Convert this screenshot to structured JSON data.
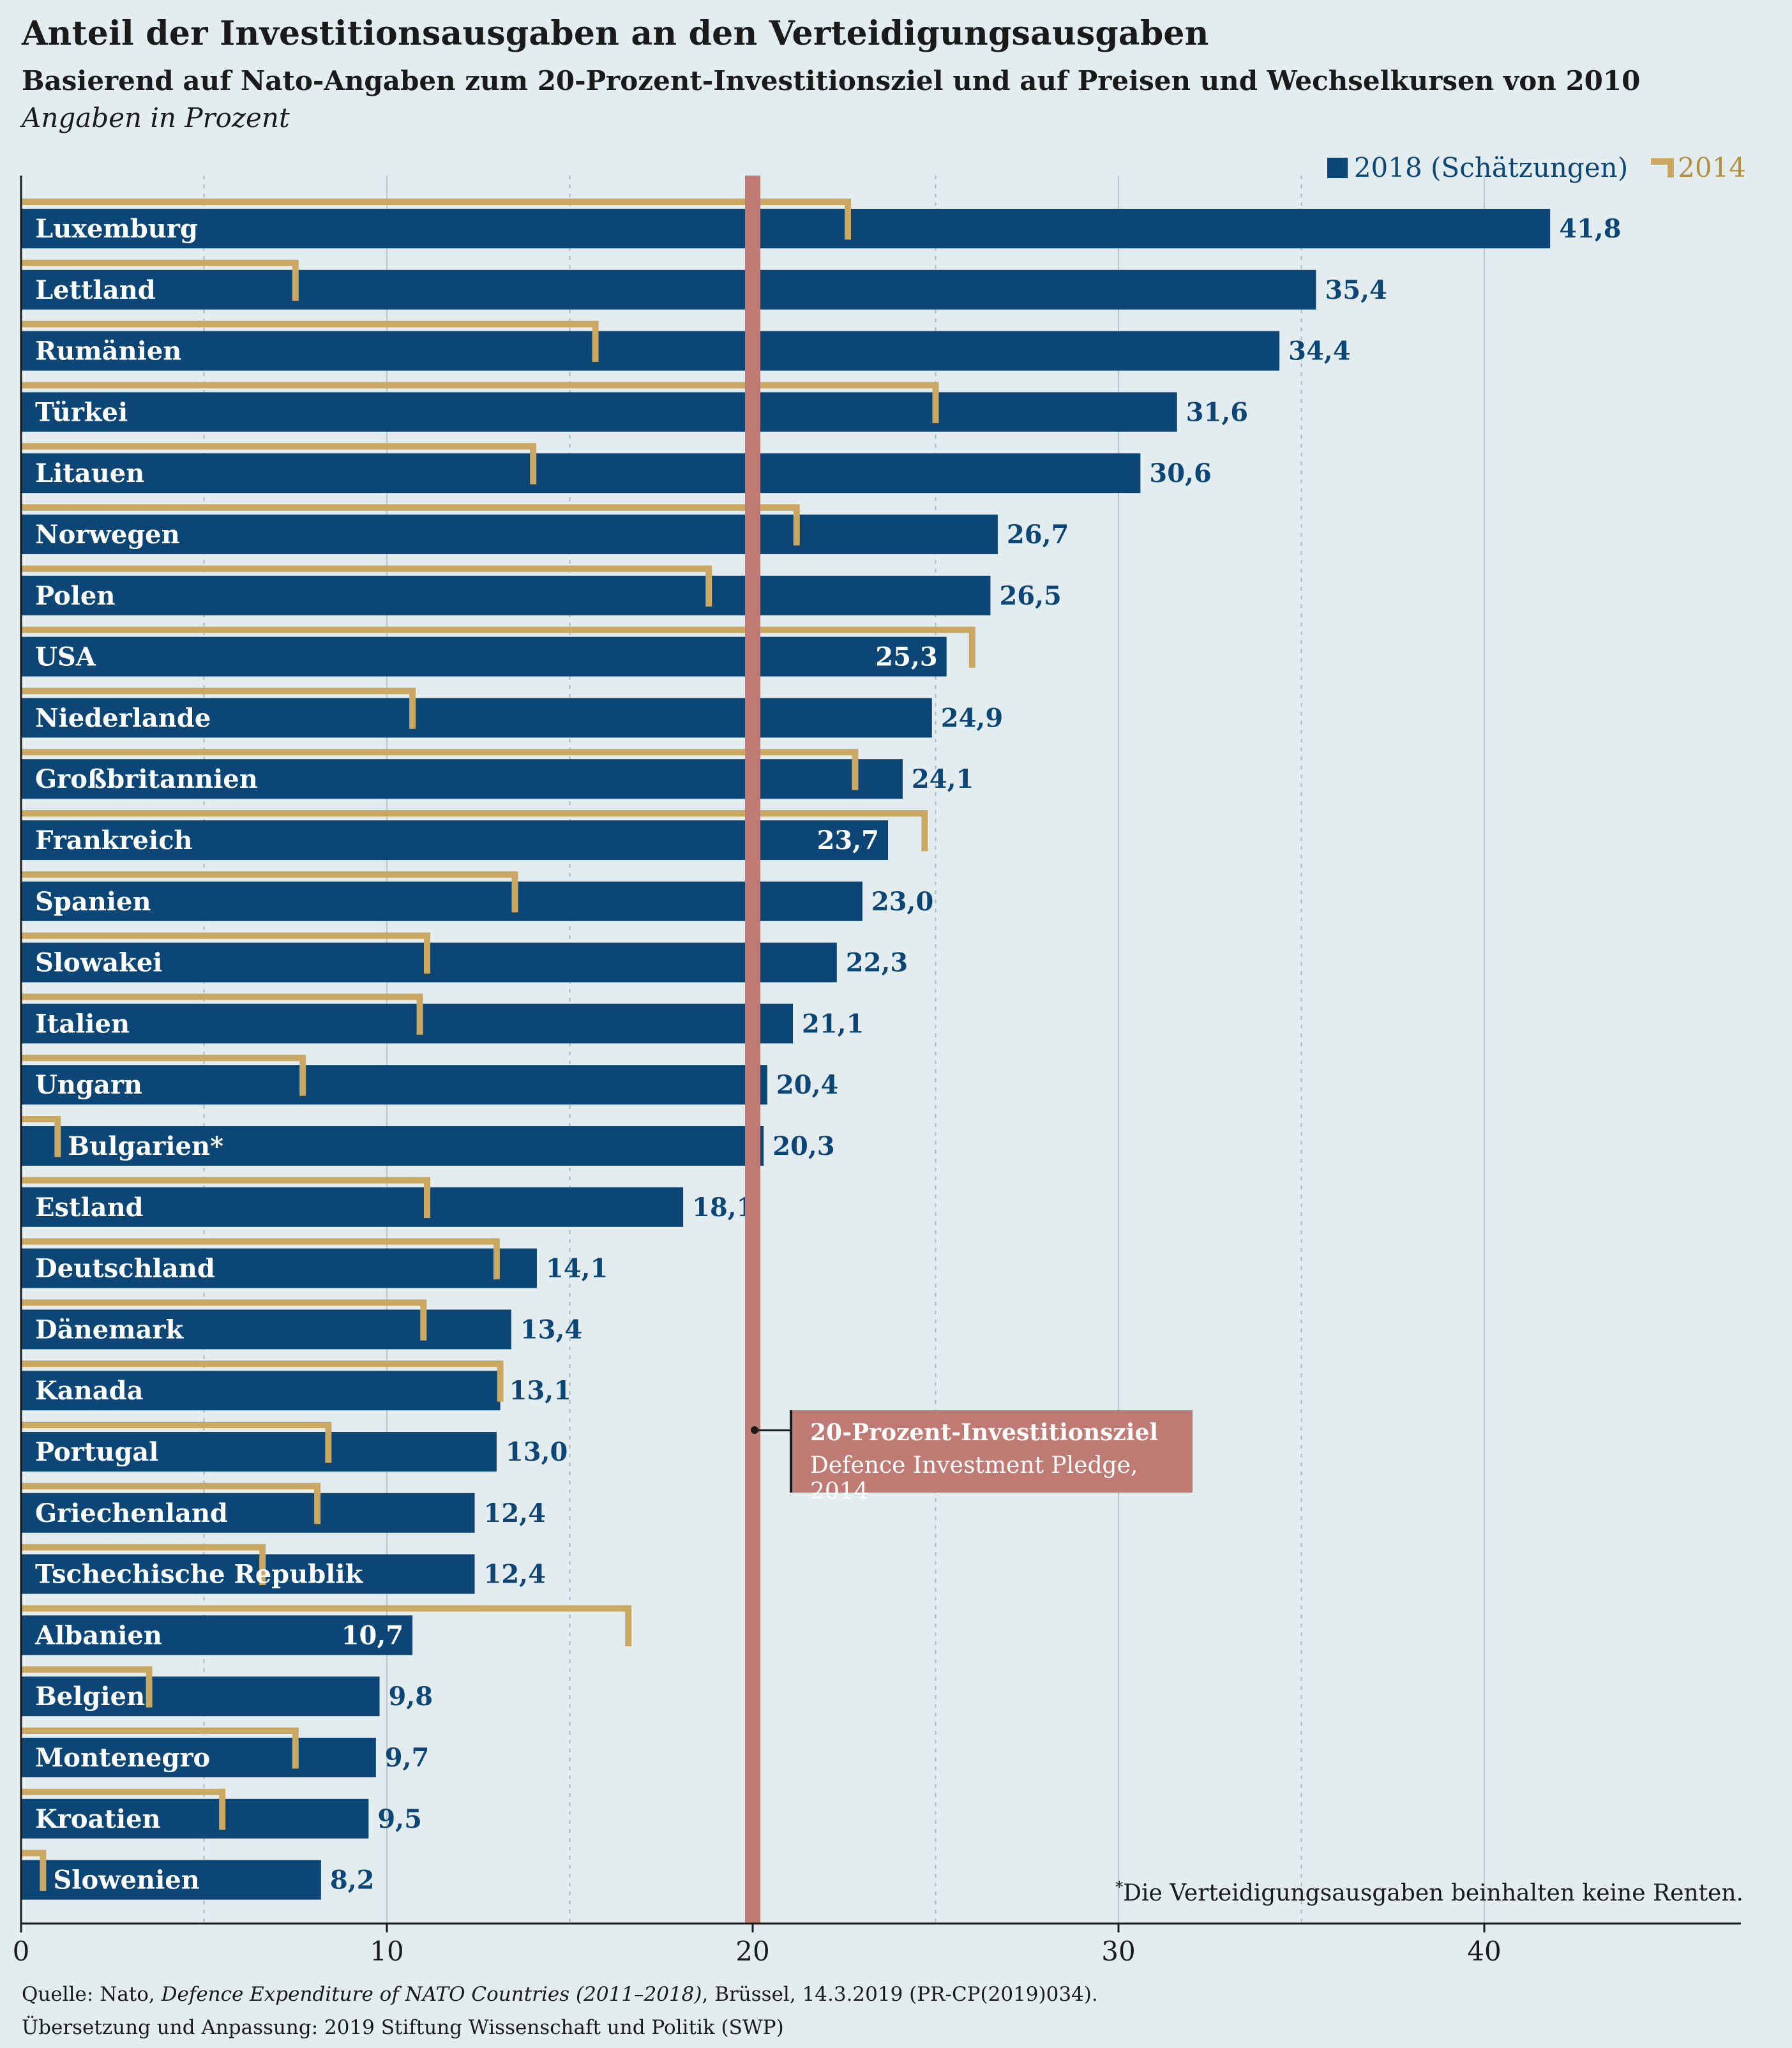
{
  "header": {
    "title": "Anteil der Investitionsausgaben an den Verteidigungsausgaben",
    "subtitle": "Basierend auf Nato-Angaben zum 20-Prozent-Investitionsziel und auf Preisen und Wechselkursen von 2010",
    "units": "Angaben in Prozent"
  },
  "legend": {
    "series_2018": "2018 (Schätzungen)",
    "series_2014": "2014"
  },
  "target": {
    "label_bold": "20-Prozent-Investitionsziel",
    "label_sub": "Defence Investment Pledge, 2014"
  },
  "footnote": {
    "marker": "*",
    "text": "Die Verteidigungsausgaben beinhalten keine Renten."
  },
  "source": {
    "line1_prefix": "Quelle: Nato, ",
    "line1_title": "Defence Expenditure of NATO Countries (2011–2018)",
    "line1_suffix": ", Brüssel, 14.3.2019 (PR-CP(2019)034).",
    "line2": "Übersetzung und Anpassung: 2019 Stiftung Wissenschaft und Politik (SWP)"
  },
  "colors": {
    "bar_2018": "#0b4677",
    "marker_2014": "#caa862",
    "target_line": "#c07a74",
    "background": "#e3edef"
  },
  "chart_data": {
    "type": "bar",
    "orientation": "horizontal",
    "title": "Anteil der Investitionsausgaben an den Verteidigungsausgaben",
    "categories": [
      "Luxemburg",
      "Lettland",
      "Rumänien",
      "Türkei",
      "Litauen",
      "Norwegen",
      "Polen",
      "USA",
      "Niederlande",
      "Großbritannien",
      "Frankreich",
      "Spanien",
      "Slowakei",
      "Italien",
      "Ungarn",
      "Bulgarien*",
      "Estland",
      "Deutschland",
      "Dänemark",
      "Kanada",
      "Portugal",
      "Griechenland",
      "Tschechische Republik",
      "Albanien",
      "Belgien",
      "Montenegro",
      "Kroatien",
      "Slowenien"
    ],
    "series": [
      {
        "name": "2018 (Schätzungen)",
        "values": [
          41.8,
          35.4,
          34.4,
          31.6,
          30.6,
          26.7,
          26.5,
          25.3,
          24.9,
          24.1,
          23.7,
          23.0,
          22.3,
          21.1,
          20.4,
          20.3,
          18.1,
          14.1,
          13.4,
          13.1,
          13.0,
          12.4,
          12.4,
          10.7,
          9.8,
          9.7,
          9.5,
          8.2
        ]
      },
      {
        "name": "2014",
        "values": [
          22.6,
          7.5,
          15.7,
          25.0,
          14.0,
          21.2,
          18.8,
          26.0,
          10.7,
          22.8,
          24.7,
          13.5,
          11.1,
          10.9,
          7.7,
          1.0,
          11.1,
          13.0,
          11.0,
          13.1,
          8.4,
          8.1,
          6.6,
          16.6,
          3.5,
          7.5,
          5.5,
          0.6
        ]
      }
    ],
    "value_labels": [
      "41,8",
      "35,4",
      "34,4",
      "31,6",
      "30,6",
      "26,7",
      "26,5",
      "25,3",
      "24,9",
      "24,1",
      "23,7",
      "23,0",
      "22,3",
      "21,1",
      "20,4",
      "20,3",
      "18,1",
      "14,1",
      "13,4",
      "13,1",
      "13,0",
      "12,4",
      "12,4",
      "10,7",
      "9,8",
      "9,7",
      "9,5",
      "8,2"
    ],
    "xlim": [
      0,
      47
    ],
    "xticks": [
      0,
      10,
      20,
      30,
      40
    ],
    "xtick_labels": [
      "0",
      "10",
      "20",
      "30",
      "40"
    ],
    "minor_gridlines": [
      5,
      15,
      25,
      35
    ],
    "reference_line": 20,
    "legend_position": "top-right",
    "grid": true
  }
}
